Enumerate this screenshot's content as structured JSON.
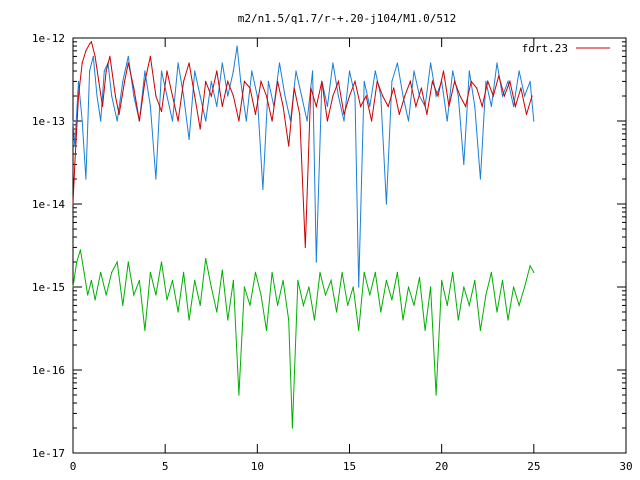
{
  "chart_data": {
    "type": "line",
    "title": "m2/n1.5/q1.7/r-+.20-j104/M1.0/512",
    "xlabel": "",
    "ylabel": "",
    "xlim": [
      0,
      30
    ],
    "ylim": [
      1e-17,
      1e-12
    ],
    "yscale": "log",
    "x_ticks": [
      0,
      5,
      10,
      15,
      20,
      25,
      30
    ],
    "x_tick_labels": [
      "0",
      "5",
      "10",
      "15",
      "20",
      "25",
      "30"
    ],
    "y_ticks": [
      1e-17,
      1e-16,
      1e-15,
      1e-14,
      1e-13,
      1e-12
    ],
    "y_tick_labels": [
      "1e-17",
      "1e-16",
      "1e-15",
      "1e-14",
      "1e-13",
      "1e-12"
    ],
    "grid": false,
    "legend": {
      "position": "top-right",
      "entries": [
        {
          "label": "fort.23",
          "color": "#cc0000"
        }
      ]
    },
    "series": [
      {
        "name": "fort.23",
        "color": "#cc0000",
        "x": [
          0,
          0.1,
          0.3,
          0.5,
          0.7,
          0.9,
          1.0,
          1.2,
          1.4,
          1.6,
          1.8,
          2.0,
          2.3,
          2.5,
          2.8,
          3.0,
          3.3,
          3.6,
          3.9,
          4.2,
          4.5,
          4.8,
          5.1,
          5.4,
          5.7,
          6.0,
          6.3,
          6.6,
          6.9,
          7.2,
          7.5,
          7.8,
          8.1,
          8.4,
          8.7,
          9.0,
          9.3,
          9.6,
          9.9,
          10.2,
          10.5,
          10.8,
          11.1,
          11.4,
          11.7,
          12.0,
          12.3,
          12.6,
          12.9,
          13.2,
          13.5,
          13.8,
          14.1,
          14.4,
          14.7,
          15.0,
          15.3,
          15.6,
          15.9,
          16.2,
          16.5,
          16.8,
          17.1,
          17.4,
          17.7,
          18.0,
          18.3,
          18.6,
          18.9,
          19.2,
          19.5,
          19.8,
          20.1,
          20.4,
          20.7,
          21.0,
          21.3,
          21.6,
          21.9,
          22.2,
          22.5,
          22.8,
          23.1,
          23.4,
          23.7,
          24.0,
          24.3,
          24.6,
          24.9
        ],
        "y": [
          1e-14,
          3e-14,
          2e-13,
          5e-13,
          7e-13,
          8.5e-13,
          9e-13,
          6e-13,
          3e-13,
          1.5e-13,
          4e-13,
          6e-13,
          2e-13,
          1.2e-13,
          3e-13,
          5e-13,
          2.5e-13,
          1e-13,
          3e-13,
          6e-13,
          2e-13,
          1.3e-13,
          4e-13,
          2e-13,
          1e-13,
          3e-13,
          5e-13,
          2e-13,
          8e-14,
          3e-13,
          2e-13,
          4e-13,
          1.5e-13,
          3e-13,
          2e-13,
          1e-13,
          3e-13,
          2.5e-13,
          1.2e-13,
          3e-13,
          2e-13,
          1e-13,
          3e-13,
          1.5e-13,
          5e-14,
          2.5e-13,
          1.2e-13,
          3e-15,
          2.5e-13,
          1.5e-13,
          3e-13,
          1e-13,
          2e-13,
          3e-13,
          1.2e-13,
          2e-13,
          3e-13,
          1.5e-13,
          2e-13,
          1e-13,
          3e-13,
          2e-13,
          1.5e-13,
          2.5e-13,
          1.2e-13,
          2e-13,
          3e-13,
          1.5e-13,
          2.5e-13,
          1.2e-13,
          3e-13,
          2e-13,
          4e-13,
          1.5e-13,
          3e-13,
          2e-13,
          1.5e-13,
          3e-13,
          2.5e-13,
          1.5e-13,
          3e-13,
          2e-13,
          3.5e-13,
          2e-13,
          3e-13,
          1.5e-13,
          2.5e-13,
          1.2e-13,
          2e-13
        ]
      },
      {
        "name": "",
        "color": "#1a7fd9",
        "x": [
          0,
          0.1,
          0.3,
          0.5,
          0.7,
          0.9,
          1.1,
          1.3,
          1.5,
          1.7,
          1.9,
          2.1,
          2.4,
          2.7,
          3.0,
          3.3,
          3.6,
          3.9,
          4.2,
          4.5,
          4.8,
          5.1,
          5.4,
          5.7,
          6.0,
          6.3,
          6.6,
          6.9,
          7.2,
          7.5,
          7.8,
          8.1,
          8.4,
          8.7,
          8.9,
          9.1,
          9.4,
          9.7,
          10.0,
          10.3,
          10.6,
          10.9,
          11.2,
          11.5,
          11.8,
          12.1,
          12.4,
          12.7,
          13.0,
          13.2,
          13.5,
          13.8,
          14.1,
          14.4,
          14.7,
          15.0,
          15.3,
          15.5,
          15.8,
          16.1,
          16.4,
          16.7,
          17.0,
          17.3,
          17.6,
          17.9,
          18.2,
          18.5,
          18.8,
          19.1,
          19.4,
          19.7,
          20.0,
          20.3,
          20.6,
          20.9,
          21.2,
          21.5,
          21.8,
          22.1,
          22.4,
          22.7,
          23.0,
          23.3,
          23.6,
          23.9,
          24.2,
          24.5,
          24.8,
          25.0
        ],
        "y": [
          1e-13,
          5e-14,
          3e-13,
          1e-13,
          2e-14,
          4e-13,
          6e-13,
          2e-13,
          1e-13,
          4e-13,
          5e-13,
          2e-13,
          1e-13,
          3e-13,
          6e-13,
          2e-13,
          1e-13,
          4e-13,
          1.5e-13,
          2e-14,
          4e-13,
          2e-13,
          1e-13,
          5e-13,
          2e-13,
          6e-14,
          4e-13,
          2e-13,
          1e-13,
          3e-13,
          1.5e-13,
          5e-13,
          2e-13,
          4e-13,
          8e-13,
          3e-13,
          1e-13,
          4e-13,
          2e-13,
          1.5e-14,
          3e-13,
          1.5e-13,
          5e-13,
          2e-13,
          1e-13,
          4e-13,
          2e-13,
          1e-13,
          4e-13,
          2e-15,
          3e-13,
          1.5e-13,
          5e-13,
          2e-13,
          1e-13,
          4e-13,
          2e-13,
          1e-15,
          3e-13,
          1.5e-13,
          4e-13,
          2e-13,
          1e-14,
          3e-13,
          5e-13,
          2e-13,
          1e-13,
          4e-13,
          2e-13,
          1.5e-13,
          5e-13,
          2e-13,
          3e-13,
          1e-13,
          4e-13,
          2e-13,
          3e-14,
          4e-13,
          1.5e-13,
          2e-14,
          3e-13,
          1.5e-13,
          5e-13,
          2e-13,
          3e-13,
          1.5e-13,
          4e-13,
          2e-13,
          3e-13,
          1e-13
        ]
      },
      {
        "name": "",
        "color": "#00b000",
        "x": [
          0,
          0.2,
          0.4,
          0.6,
          0.8,
          1.0,
          1.2,
          1.5,
          1.8,
          2.1,
          2.4,
          2.7,
          3.0,
          3.3,
          3.6,
          3.9,
          4.2,
          4.5,
          4.8,
          5.1,
          5.4,
          5.7,
          6.0,
          6.3,
          6.6,
          6.9,
          7.2,
          7.5,
          7.8,
          8.1,
          8.4,
          8.7,
          9.0,
          9.3,
          9.6,
          9.9,
          10.2,
          10.5,
          10.8,
          11.1,
          11.4,
          11.7,
          11.9,
          12.2,
          12.5,
          12.8,
          13.1,
          13.4,
          13.7,
          14.0,
          14.3,
          14.6,
          14.9,
          15.2,
          15.5,
          15.8,
          16.1,
          16.4,
          16.7,
          17.0,
          17.3,
          17.6,
          17.9,
          18.2,
          18.5,
          18.8,
          19.1,
          19.4,
          19.7,
          20.0,
          20.3,
          20.6,
          20.9,
          21.2,
          21.5,
          21.8,
          22.1,
          22.4,
          22.7,
          23.0,
          23.3,
          23.6,
          23.9,
          24.2,
          24.5,
          24.8,
          25.0
        ],
        "y": [
          1e-15,
          2e-15,
          2.8e-15,
          1.5e-15,
          8e-16,
          1.2e-15,
          7e-16,
          1.5e-15,
          8e-16,
          1.5e-15,
          2e-15,
          6e-16,
          2e-15,
          8e-16,
          1.2e-15,
          3e-16,
          1.5e-15,
          8e-16,
          2e-15,
          7e-16,
          1.2e-15,
          5e-16,
          1.5e-15,
          4e-16,
          1.2e-15,
          6e-16,
          2.2e-15,
          1e-15,
          5e-16,
          1.6e-15,
          4e-16,
          1.2e-15,
          5e-17,
          1e-15,
          6e-16,
          1.5e-15,
          8e-16,
          3e-16,
          1.5e-15,
          6e-16,
          1.2e-15,
          4e-16,
          2e-17,
          1.2e-15,
          6e-16,
          1e-15,
          4e-16,
          1.5e-15,
          8e-16,
          1.2e-15,
          5e-16,
          1.5e-15,
          6e-16,
          1e-15,
          3e-16,
          1.5e-15,
          8e-16,
          1.5e-15,
          5e-16,
          1.2e-15,
          7e-16,
          1.5e-15,
          4e-16,
          1e-15,
          6e-16,
          1.3e-15,
          3e-16,
          1e-15,
          5e-17,
          1.2e-15,
          6e-16,
          1.5e-15,
          4e-16,
          1e-15,
          6e-16,
          1.2e-15,
          3e-16,
          8e-16,
          1.5e-15,
          5e-16,
          1.2e-15,
          4e-16,
          1e-15,
          6e-16,
          1e-15,
          1.8e-15,
          1.5e-15
        ]
      }
    ]
  }
}
